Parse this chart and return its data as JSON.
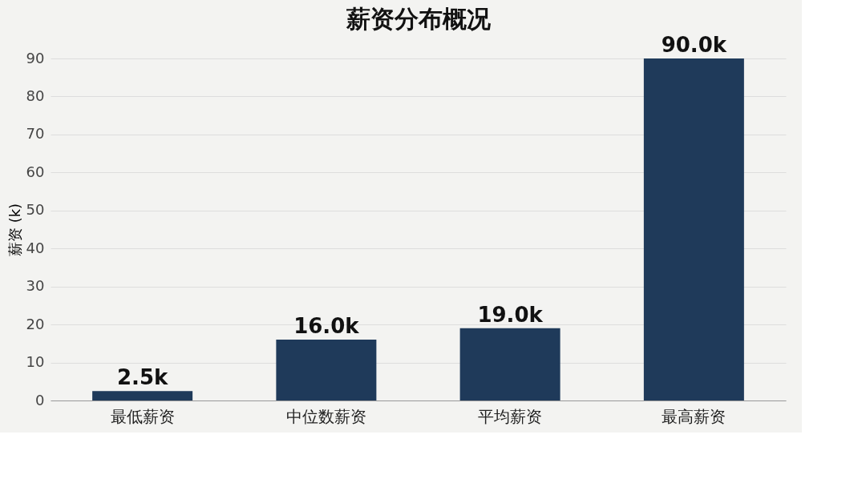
{
  "chart_data": {
    "type": "bar",
    "title": "薪资分布概况",
    "ylabel": "薪资 (k)",
    "categories": [
      "最低薪资",
      "中位数薪资",
      "平均薪资",
      "最高薪资"
    ],
    "values": [
      2.5,
      16.0,
      19.0,
      90.0
    ],
    "value_labels": [
      "2.5k",
      "16.0k",
      "19.0k",
      "90.0k"
    ],
    "color": "#1f3a5a",
    "ylim": [
      0,
      90
    ],
    "yticks": [
      0,
      10,
      20,
      30,
      40,
      50,
      60,
      70,
      80,
      90
    ],
    "grid": "y"
  }
}
